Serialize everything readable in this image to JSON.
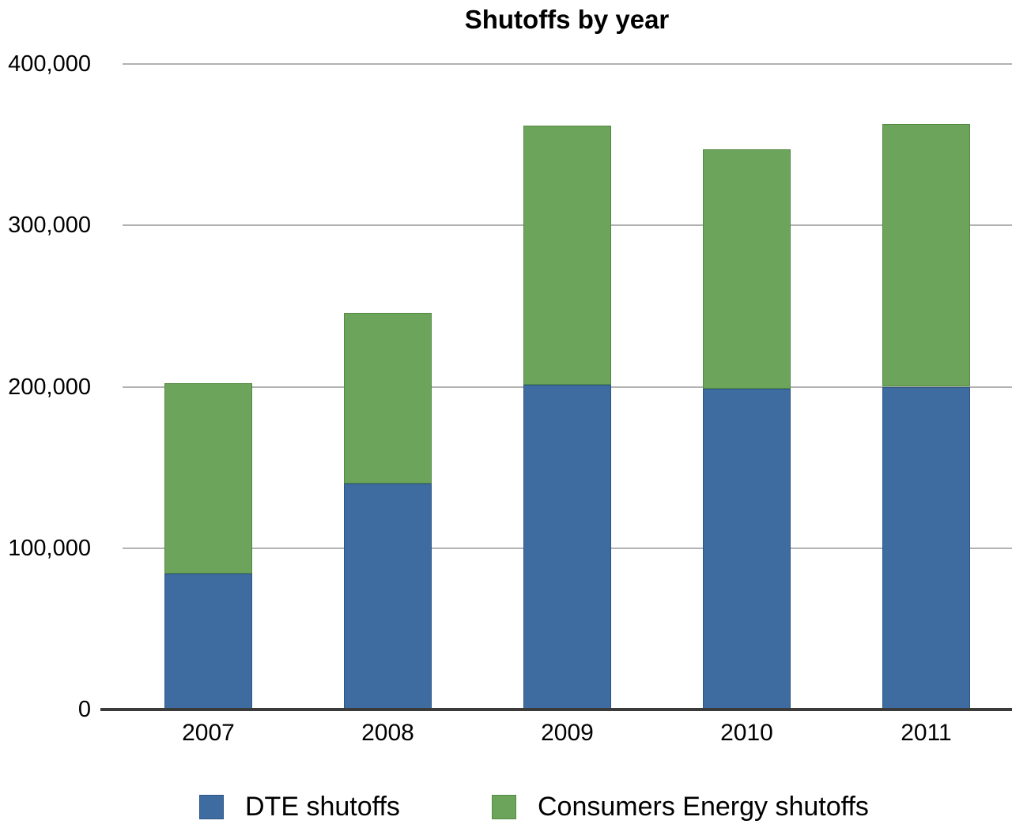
{
  "chart_data": {
    "type": "bar",
    "stacked": true,
    "title": "Shutoffs by year",
    "categories": [
      "2007",
      "2008",
      "2009",
      "2010",
      "2011"
    ],
    "series": [
      {
        "key": "dte",
        "name": "DTE shutoffs",
        "color": "#3e6ca0",
        "border_color": "#2d5586",
        "values": [
          84000,
          140000,
          201000,
          199000,
          200000
        ]
      },
      {
        "key": "consumers-energy",
        "name": "Consumers Energy shutoffs",
        "color": "#6ba45a",
        "border_color": "#538a42",
        "values": [
          118000,
          106000,
          161000,
          148000,
          163000
        ]
      }
    ],
    "stacked_totals": [
      202000,
      246000,
      362000,
      347000,
      363000
    ],
    "xlabel": "",
    "ylabel": "",
    "ylim": [
      0,
      400000
    ],
    "ytick_step": 100000,
    "ytick_labels": [
      "0",
      "100,000",
      "200,000",
      "300,000",
      "400,000"
    ],
    "grid": true,
    "legend_position": "bottom",
    "style": {
      "gridline_color": "#b2b2b2",
      "axis_line_color": "#3a3a3a",
      "text_color": "#000000",
      "background": "#ffffff"
    }
  }
}
